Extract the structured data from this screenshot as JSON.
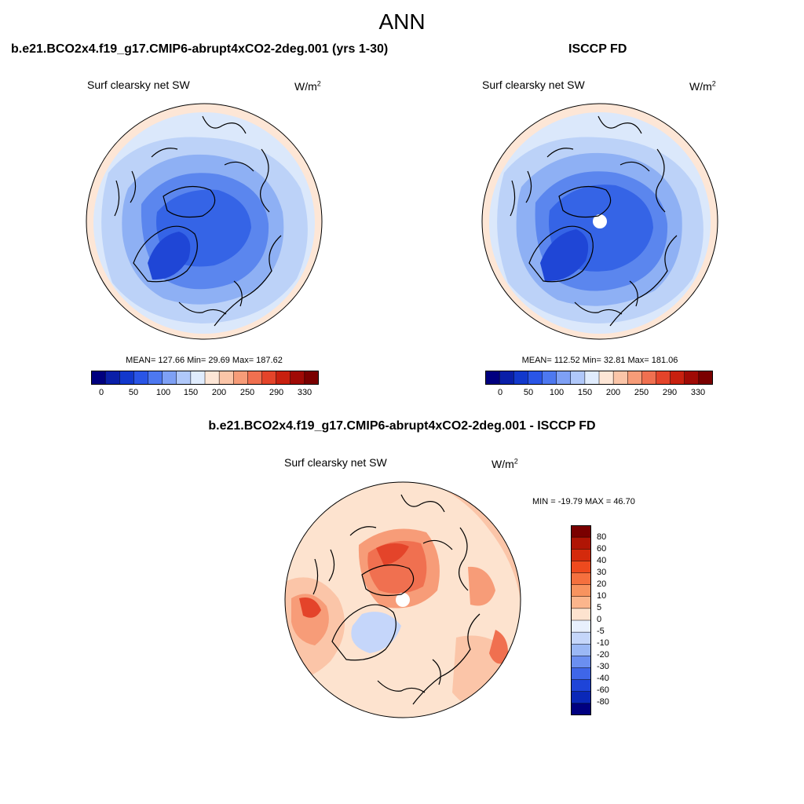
{
  "title": "ANN",
  "panels": [
    {
      "case_title": "b.e21.BCO2x4.f19_g17.CMIP6-abrupt4xCO2-2deg.001 (yrs 1-30)",
      "var_label": "Surf clearsky net SW",
      "units": "W/m",
      "units_sup": "2",
      "stats": "MEAN= 127.66  Min=  29.69  Max= 187.62"
    },
    {
      "case_title": "ISCCP FD",
      "var_label": "Surf clearsky net SW",
      "units": "W/m",
      "units_sup": "2",
      "stats": "MEAN= 112.52  Min=  32.81  Max= 181.06"
    }
  ],
  "diff_panel": {
    "case_title": "b.e21.BCO2x4.f19_g17.CMIP6-abrupt4xCO2-2deg.001 - ISCCP FD",
    "var_label": "Surf clearsky net SW",
    "units": "W/m",
    "units_sup": "2",
    "stats": "MIN = -19.79 MAX =  46.70"
  },
  "colorbar_main": {
    "colors": [
      "#00007f",
      "#0a1fa8",
      "#1238cc",
      "#2a55e6",
      "#4d78f0",
      "#7ea0f5",
      "#b0c8fa",
      "#e0ecfd",
      "#fde6d6",
      "#fbc5a8",
      "#f79c78",
      "#f07050",
      "#e4442a",
      "#c8200f",
      "#a00a05",
      "#7a0000"
    ],
    "tick_labels": [
      "0",
      "50",
      "100",
      "150",
      "200",
      "250",
      "290",
      "330"
    ]
  },
  "colorbar_diff": {
    "colors": [
      "#7a0000",
      "#b01505",
      "#d42a0c",
      "#ee4a1e",
      "#f5703e",
      "#f8935f",
      "#fbb58c",
      "#fde3cf",
      "#e8f0fd",
      "#c5d6fa",
      "#9bb8f5",
      "#6b8ff0",
      "#3f66e8",
      "#1e44d8",
      "#0a28b8",
      "#000080"
    ],
    "tick_labels": [
      "80",
      "60",
      "40",
      "30",
      "20",
      "10",
      "5",
      "0",
      "-5",
      "-10",
      "-20",
      "-30",
      "-40",
      "-60",
      "-80"
    ]
  },
  "colors": {
    "ocean_light": "#dbe8fb",
    "pale_blue": "#bcd2f8",
    "mid_blue": "#8eb0f4",
    "blue": "#5b86ee",
    "deep_blue": "#3564e6",
    "darkest_blue": "#1f46d6",
    "peach": "#fde6d6",
    "diff_pale": "#fde3cf",
    "diff_light": "#fbc5a8",
    "diff_mid": "#f79c78",
    "diff_strong": "#f07050",
    "diff_red": "#e4442a",
    "diff_blue": "#c5d6fa"
  }
}
